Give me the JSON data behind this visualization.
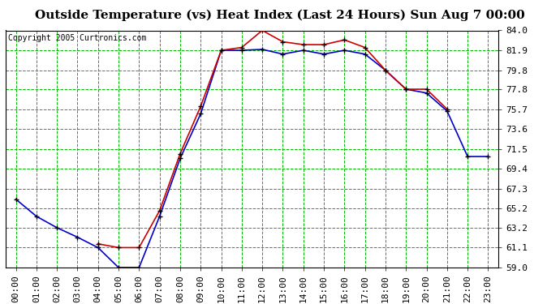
{
  "title": "Outside Temperature (vs) Heat Index (Last 24 Hours) Sun Aug 7 00:00",
  "copyright": "Copyright 2005 Curtronics.com",
  "background_color": "#ffffff",
  "plot_bg_color": "#ffffff",
  "grid_color": "#00bb00",
  "x_labels": [
    "00:00",
    "01:00",
    "02:00",
    "03:00",
    "04:00",
    "05:00",
    "06:00",
    "07:00",
    "08:00",
    "09:00",
    "10:00",
    "11:00",
    "12:00",
    "13:00",
    "14:00",
    "15:00",
    "16:00",
    "17:00",
    "18:00",
    "19:00",
    "20:00",
    "21:00",
    "22:00",
    "23:00"
  ],
  "y_ticks": [
    59.0,
    61.1,
    63.2,
    65.2,
    67.3,
    69.4,
    71.5,
    73.6,
    75.7,
    77.8,
    79.8,
    81.9,
    84.0
  ],
  "blue_data": [
    66.2,
    64.4,
    63.2,
    62.2,
    61.1,
    59.0,
    59.0,
    64.4,
    70.5,
    75.2,
    81.9,
    81.9,
    82.0,
    81.5,
    81.9,
    81.5,
    81.9,
    81.5,
    79.8,
    77.8,
    77.4,
    75.5,
    70.7,
    70.7
  ],
  "red_data": [
    null,
    null,
    null,
    null,
    61.5,
    61.1,
    61.1,
    65.0,
    71.0,
    76.0,
    81.9,
    82.2,
    84.0,
    82.8,
    82.5,
    82.5,
    83.0,
    82.2,
    79.8,
    77.8,
    77.8,
    75.7,
    null,
    null
  ],
  "blue_color": "#0000cc",
  "red_color": "#cc0000",
  "marker_color": "#000000",
  "ylim_min": 59.0,
  "ylim_max": 84.0,
  "title_fontsize": 11,
  "copyright_fontsize": 7,
  "tick_fontsize": 8
}
